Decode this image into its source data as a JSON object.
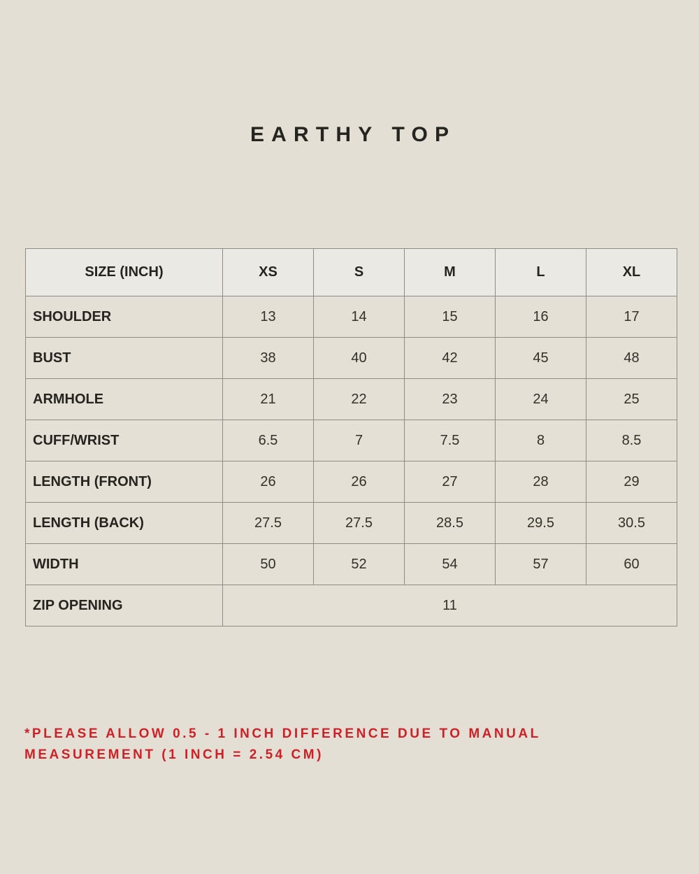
{
  "page": {
    "title": "EARTHY TOP",
    "background_color": "#e3dfd4",
    "title_color": "#25241f"
  },
  "table": {
    "unit_note": "SIZE (INCH)",
    "header": {
      "label": "SIZE (INCH)",
      "sizes": [
        "XS",
        "S",
        "M",
        "L",
        "XL"
      ]
    },
    "header_bg_color": "#ebe9e3",
    "body_bg_color": "#e4e0d5",
    "border_color": "#8e8c84",
    "rows": [
      {
        "label": "SHOULDER",
        "values": [
          "13",
          "14",
          "15",
          "16",
          "17"
        ]
      },
      {
        "label": "BUST",
        "values": [
          "38",
          "40",
          "42",
          "45",
          "48"
        ]
      },
      {
        "label": "ARMHOLE",
        "values": [
          "21",
          "22",
          "23",
          "24",
          "25"
        ]
      },
      {
        "label": "CUFF/WRIST",
        "values": [
          "6.5",
          "7",
          "7.5",
          "8",
          "8.5"
        ]
      },
      {
        "label": "LENGTH (FRONT)",
        "values": [
          "26",
          "26",
          "27",
          "28",
          "29"
        ]
      },
      {
        "label": "LENGTH (BACK)",
        "values": [
          "27.5",
          "27.5",
          "28.5",
          "29.5",
          "30.5"
        ]
      },
      {
        "label": "WIDTH",
        "values": [
          "50",
          "52",
          "54",
          "57",
          "60"
        ]
      },
      {
        "label": "ZIP OPENING",
        "span_value": "11"
      }
    ]
  },
  "footnote": {
    "color": "#cd2127",
    "lines": [
      "*PLEASE ALLOW 0.5 - 1 INCH DIFFERENCE DUE TO MANUAL",
      "MEASUREMENT (1 INCH = 2.54 CM)"
    ],
    "full_text": "*PLEASE ALLOW 0.5 - 1 INCH DIFFERENCE DUE TO MANUAL MEASUREMENT (1 INCH = 2.54 CM)"
  }
}
